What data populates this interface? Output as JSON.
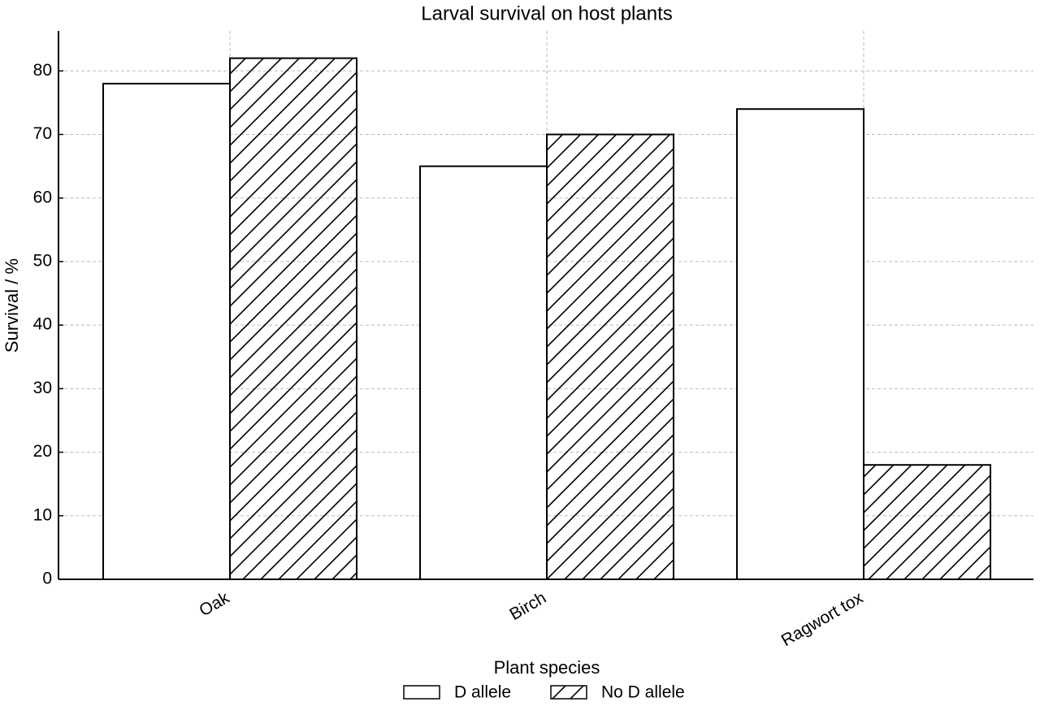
{
  "chart_data": {
    "type": "bar",
    "title": "Larval survival on host plants",
    "x_label": "Plant species",
    "y_label": "Survival / %",
    "categories": [
      "Oak",
      "Birch",
      "Ragwort tox"
    ],
    "series": [
      {
        "name": "D allele",
        "color": "#ffffff",
        "hatch": null,
        "values": [
          78,
          65,
          74
        ]
      },
      {
        "name": "No D allele",
        "color": "#ffffff",
        "hatch": "/",
        "values": [
          82,
          70,
          18
        ]
      }
    ],
    "ylim": [
      0,
      86.3
    ],
    "yticks": [
      0,
      10,
      20,
      30,
      40,
      50,
      60,
      70,
      80
    ],
    "grid": true,
    "legend": "bottom"
  }
}
